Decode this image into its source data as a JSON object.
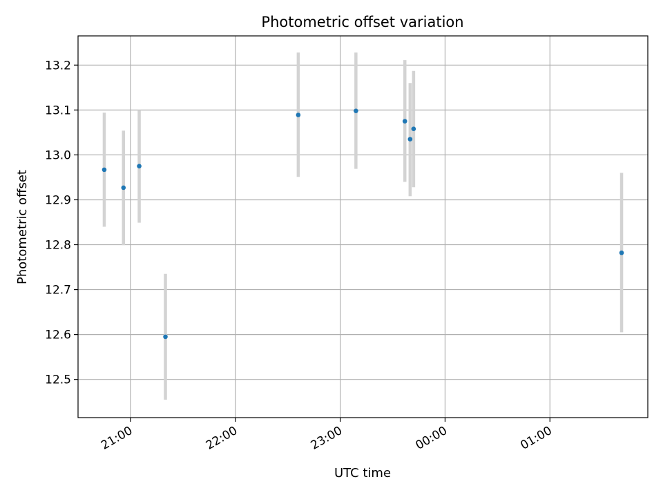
{
  "chart_data": {
    "type": "scatter",
    "title": "Photometric offset variation",
    "xlabel": "UTC time",
    "ylabel": "Photometric offset",
    "x_axis_kind": "time",
    "x_ticks": [
      "21:00",
      "22:00",
      "23:00",
      "00:00",
      "01:00"
    ],
    "y_ticks": [
      "12.5",
      "12.6",
      "12.7",
      "12.8",
      "12.9",
      "13.0",
      "13.1",
      "13.2"
    ],
    "xlim": [
      "20:30",
      "01:56"
    ],
    "ylim": [
      12.415,
      13.265
    ],
    "grid": true,
    "marker_color": "#1f77b4",
    "errorbar_color": "#d3d3d3",
    "points": [
      {
        "x": "20:45",
        "y": 12.967,
        "err_low": 12.84,
        "err_high": 13.094
      },
      {
        "x": "20:56",
        "y": 12.927,
        "err_low": 12.799,
        "err_high": 13.054
      },
      {
        "x": "21:05",
        "y": 12.975,
        "err_low": 12.849,
        "err_high": 13.1
      },
      {
        "x": "21:20",
        "y": 12.595,
        "err_low": 12.455,
        "err_high": 12.735
      },
      {
        "x": "22:36",
        "y": 13.089,
        "err_low": 12.951,
        "err_high": 13.228
      },
      {
        "x": "23:09",
        "y": 13.098,
        "err_low": 12.969,
        "err_high": 13.228
      },
      {
        "x": "23:37",
        "y": 13.075,
        "err_low": 12.94,
        "err_high": 13.211
      },
      {
        "x": "23:40",
        "y": 13.035,
        "err_low": 12.908,
        "err_high": 13.16
      },
      {
        "x": "23:42",
        "y": 13.058,
        "err_low": 12.928,
        "err_high": 13.187
      },
      {
        "x": "01:41",
        "y": 12.782,
        "err_low": 12.605,
        "err_high": 12.96
      }
    ]
  }
}
